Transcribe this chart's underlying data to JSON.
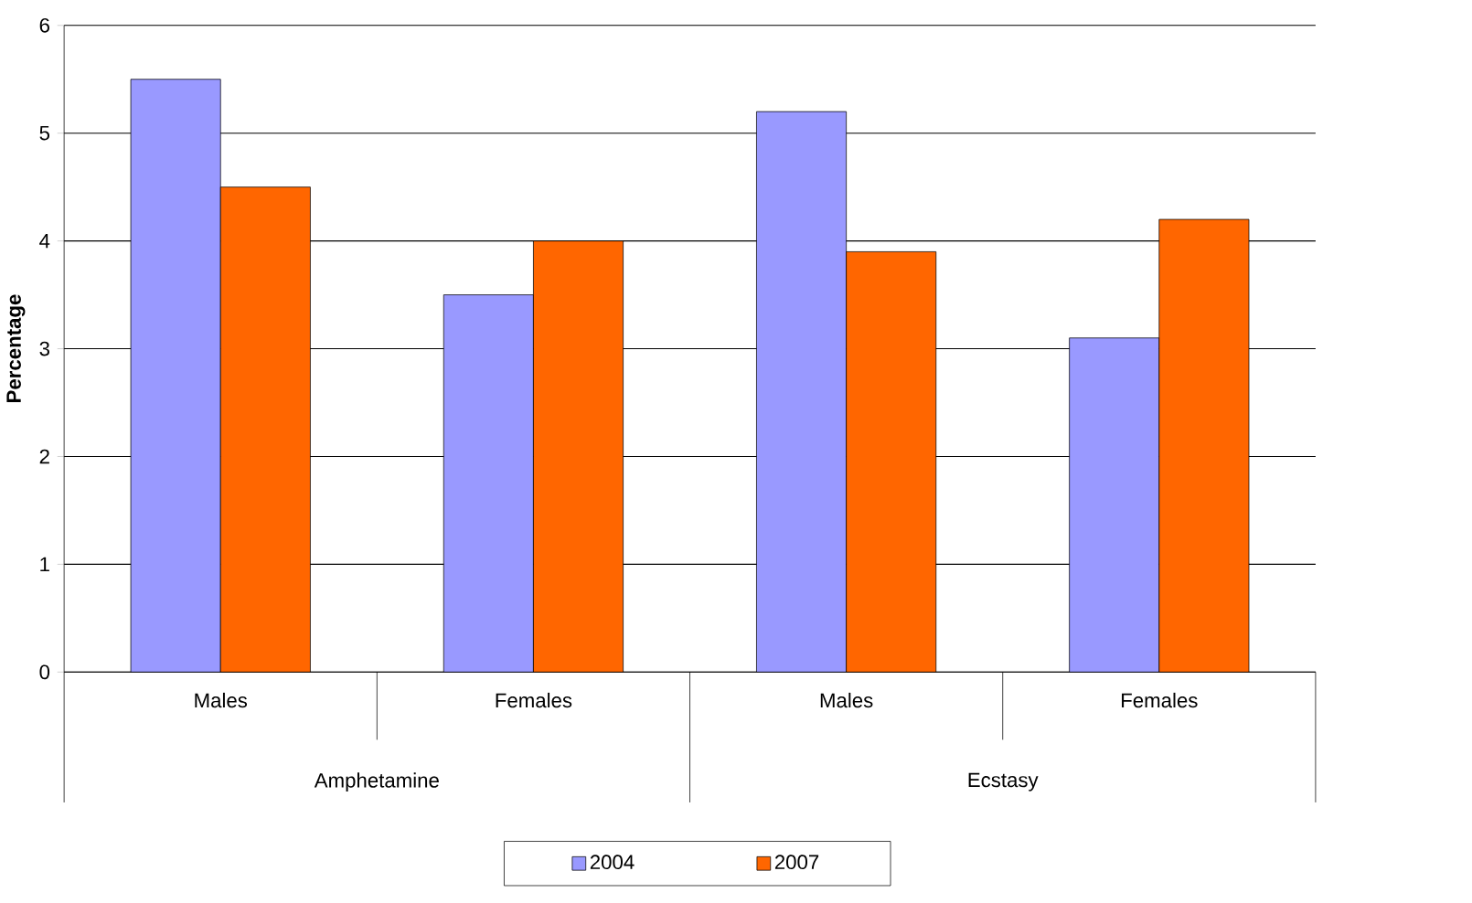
{
  "chart_data": {
    "type": "bar",
    "ylabel": "Percentage",
    "categories": [
      "Males",
      "Females",
      "Males",
      "Females"
    ],
    "annotations": [
      "Amphetamine",
      "Ecstasy"
    ],
    "series": [
      {
        "name": "2004",
        "color": "#9999ff",
        "values": [
          5.5,
          3.5,
          5.2,
          3.1
        ]
      },
      {
        "name": "2007",
        "color": "#ff6600",
        "values": [
          4.5,
          4.0,
          3.9,
          4.2
        ]
      }
    ],
    "ylim": [
      0,
      6
    ],
    "yticks": [
      0,
      1,
      2,
      3,
      4,
      5,
      6
    ],
    "grid": "y",
    "legend": "bottom"
  }
}
